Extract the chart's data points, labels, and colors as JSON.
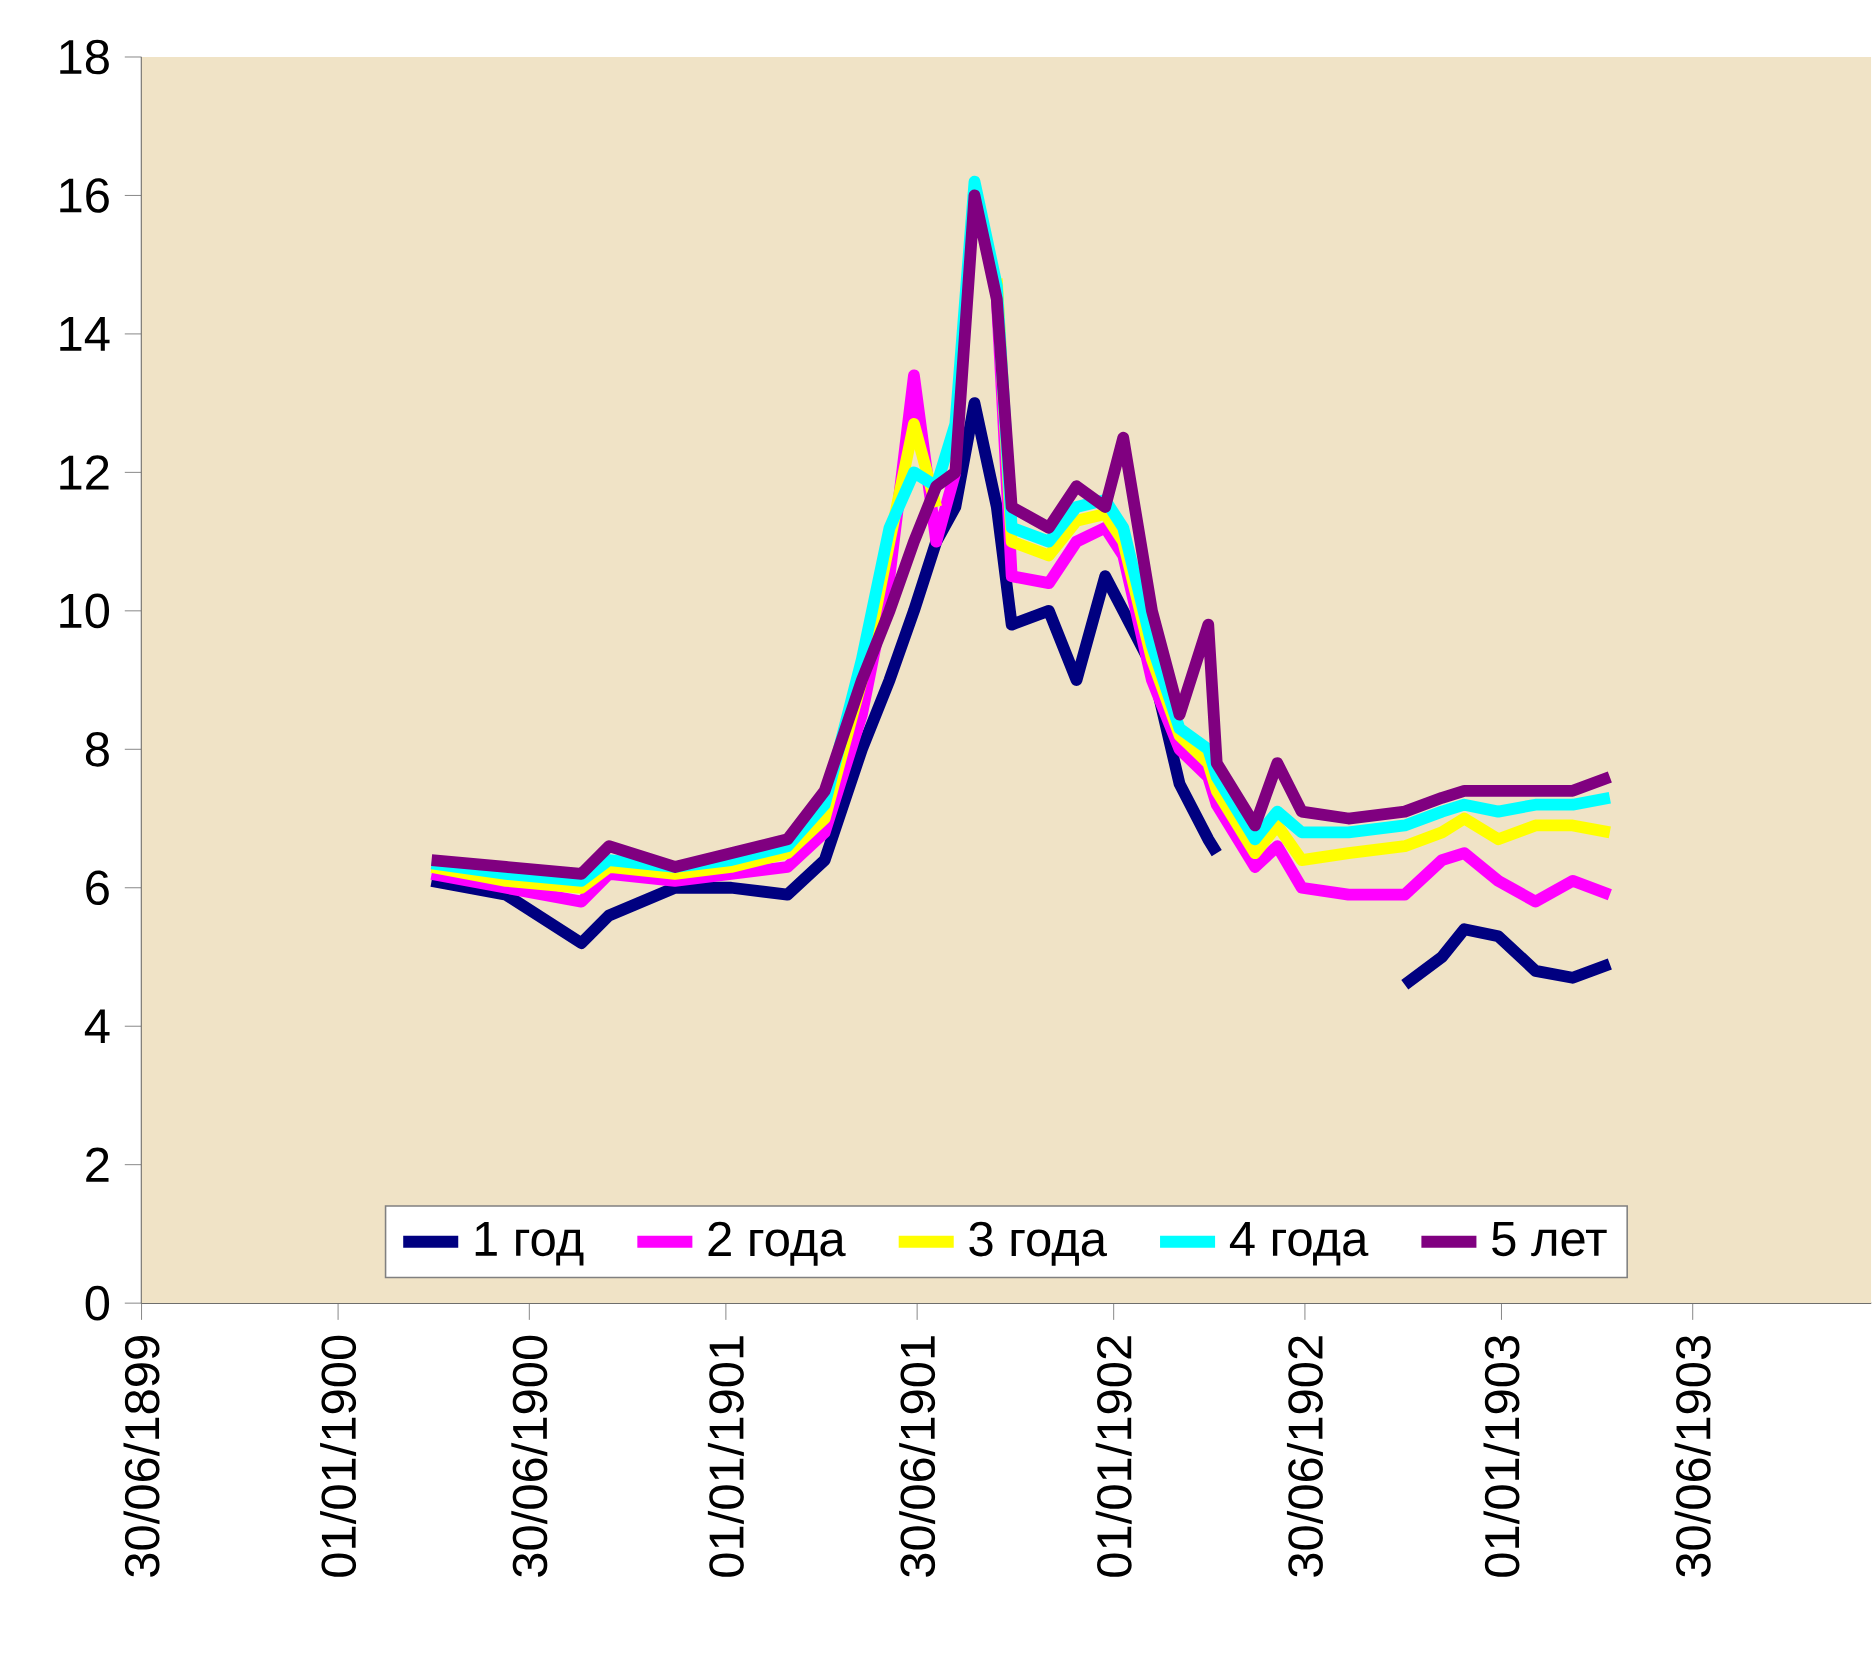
{
  "chart_data": {
    "type": "line",
    "x": [
      "1900-03-30",
      "1900-06-08",
      "1900-08-18",
      "1900-09-13",
      "1900-11-14",
      "1901-01-06",
      "1901-02-28",
      "1901-04-04",
      "1901-05-09",
      "1901-06-04",
      "1901-06-27",
      "1901-07-18",
      "1901-08-05",
      "1901-08-23",
      "1901-09-13",
      "1901-09-27",
      "1901-11-01",
      "1901-11-27",
      "1901-12-24",
      "1902-01-10",
      "1902-02-06",
      "1902-03-04",
      "1902-03-31",
      "1902-04-08",
      "1902-05-14",
      "1902-06-04",
      "1902-06-27",
      "1902-08-10",
      "1902-10-02",
      "1902-11-06",
      "1902-11-27",
      "1902-12-29",
      "1903-02-02",
      "1903-03-09",
      "1903-04-13"
    ],
    "series": [
      {
        "name": "1 год",
        "color": "#000080",
        "values": [
          6.1,
          5.9,
          5.2,
          5.6,
          6.0,
          6.0,
          5.9,
          6.4,
          8.0,
          9.0,
          10.0,
          11.0,
          11.5,
          13.0,
          11.5,
          9.8,
          10.0,
          9.0,
          10.5,
          10.0,
          9.2,
          7.5,
          6.7,
          6.5,
          null,
          null,
          null,
          null,
          4.6,
          5.0,
          5.4,
          5.3,
          4.8,
          4.7,
          4.9
        ]
      },
      {
        "name": "2 года",
        "color": "#ff00ff",
        "values": [
          6.2,
          6.0,
          5.8,
          6.2,
          6.1,
          6.2,
          6.3,
          6.8,
          8.5,
          10.5,
          13.4,
          11.0,
          12.0,
          null,
          14.5,
          10.5,
          10.4,
          11.0,
          11.2,
          10.8,
          9.0,
          8.0,
          7.6,
          7.2,
          6.3,
          6.6,
          6.0,
          5.9,
          5.9,
          6.4,
          6.5,
          6.1,
          5.8,
          6.1,
          5.9
        ]
      },
      {
        "name": "3 года",
        "color": "#ffff00",
        "values": [
          6.3,
          6.1,
          6.0,
          6.3,
          6.2,
          6.3,
          6.5,
          7.0,
          9.0,
          11.0,
          12.7,
          11.5,
          null,
          null,
          14.8,
          11.0,
          10.8,
          11.3,
          11.4,
          11.0,
          9.3,
          8.2,
          7.8,
          7.4,
          6.5,
          6.9,
          6.4,
          6.5,
          6.6,
          6.8,
          7.0,
          6.7,
          6.9,
          6.9,
          6.8
        ]
      },
      {
        "name": "4 года",
        "color": "#00ffff",
        "values": [
          6.35,
          6.2,
          6.1,
          6.4,
          6.3,
          6.4,
          6.6,
          7.2,
          9.3,
          11.2,
          12.0,
          11.8,
          12.7,
          16.2,
          14.7,
          11.2,
          11.0,
          11.5,
          11.6,
          11.2,
          9.5,
          8.3,
          8.0,
          7.6,
          6.7,
          7.1,
          6.8,
          6.8,
          6.9,
          7.1,
          7.2,
          7.1,
          7.2,
          7.2,
          7.3
        ]
      },
      {
        "name": "5 лет",
        "color": "#800080",
        "values": [
          6.4,
          6.3,
          6.2,
          6.6,
          6.3,
          6.5,
          6.7,
          7.4,
          9.0,
          10.0,
          11.0,
          11.8,
          12.0,
          16.0,
          14.5,
          11.5,
          11.2,
          11.8,
          11.5,
          12.5,
          10.0,
          8.5,
          9.8,
          7.8,
          6.9,
          7.8,
          7.1,
          7.0,
          7.1,
          7.3,
          7.4,
          7.4,
          7.4,
          7.4,
          7.6
        ]
      }
    ],
    "xlim": [
      "1899-06-30",
      "1903-12-15"
    ],
    "xticks": [
      {
        "value": "1899-06-30",
        "label": "30/06/1899"
      },
      {
        "value": "1900-01-01",
        "label": "01/01/1900"
      },
      {
        "value": "1900-06-30",
        "label": "30/06/1900"
      },
      {
        "value": "1901-01-01",
        "label": "01/01/1901"
      },
      {
        "value": "1901-06-30",
        "label": "30/06/1901"
      },
      {
        "value": "1902-01-01",
        "label": "01/01/1902"
      },
      {
        "value": "1902-06-30",
        "label": "30/06/1902"
      },
      {
        "value": "1903-01-01",
        "label": "01/01/1903"
      },
      {
        "value": "1903-06-30",
        "label": "30/06/1903"
      }
    ],
    "ylim": [
      0,
      18
    ],
    "yticks": [
      0,
      2,
      4,
      6,
      8,
      10,
      12,
      14,
      16,
      18
    ],
    "legend": "bottom",
    "marker": "none",
    "line_style": "solid",
    "grid": false
  }
}
